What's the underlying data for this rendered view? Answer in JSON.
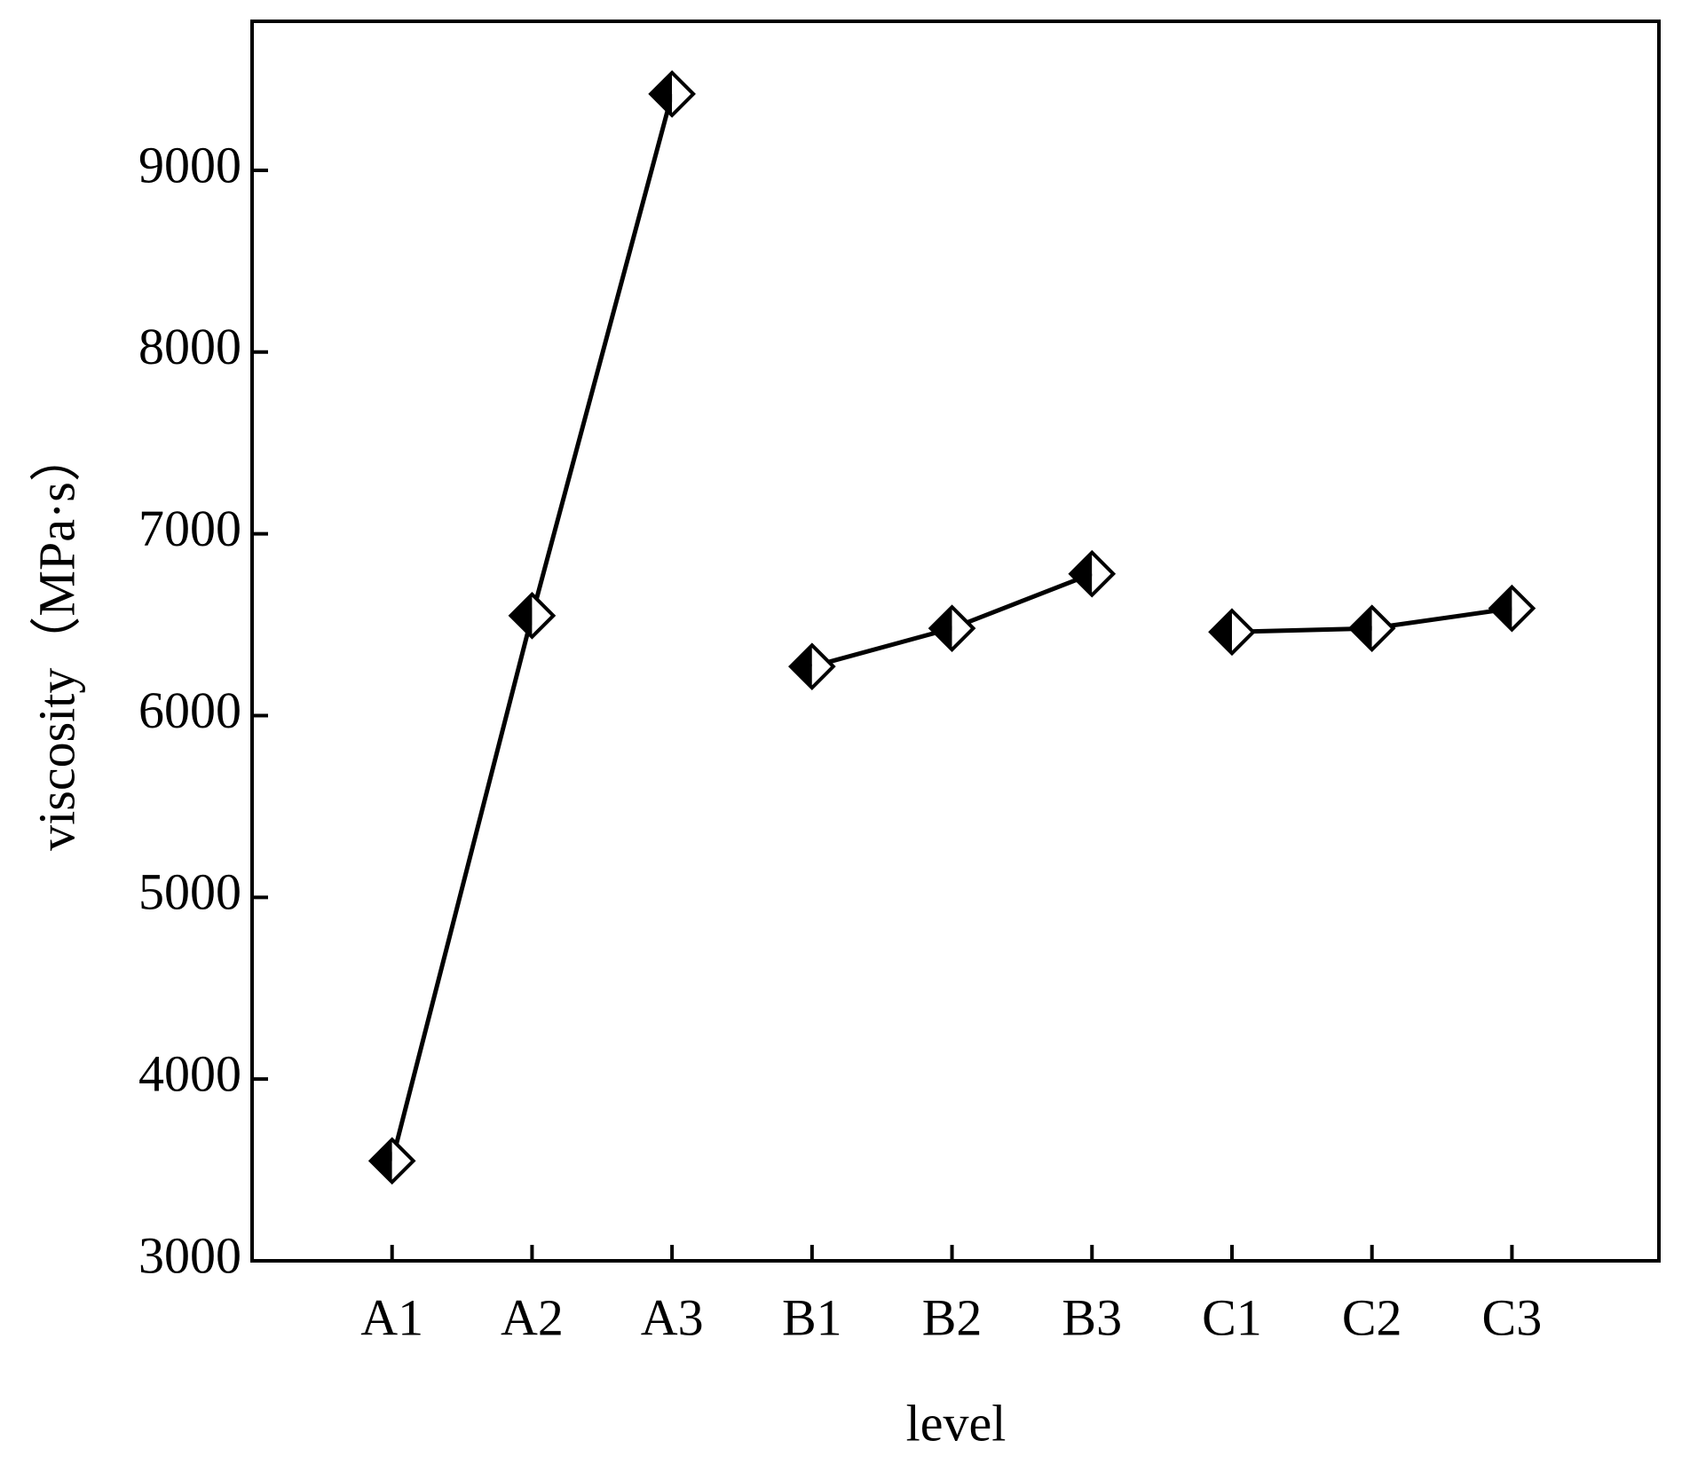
{
  "chart_data": {
    "type": "line",
    "x_label": "level",
    "y_label": "viscosity（MPa·s）",
    "categories": [
      "A1",
      "A2",
      "A3",
      "B1",
      "B2",
      "B3",
      "C1",
      "C2",
      "C3"
    ],
    "series": [
      {
        "color": "#000000",
        "values": [
          3550,
          6550,
          9420,
          null,
          null,
          null,
          null,
          null,
          null
        ]
      },
      {
        "color": "#000000",
        "values": [
          null,
          null,
          null,
          6270,
          6480,
          6780,
          null,
          null,
          null
        ]
      },
      {
        "color": "#000000",
        "values": [
          null,
          null,
          null,
          null,
          null,
          null,
          6460,
          6480,
          6590
        ]
      }
    ],
    "ylim": [
      3000,
      9820
    ],
    "yticks": [
      3000,
      4000,
      5000,
      6000,
      7000,
      8000,
      9000
    ],
    "grid": false
  }
}
